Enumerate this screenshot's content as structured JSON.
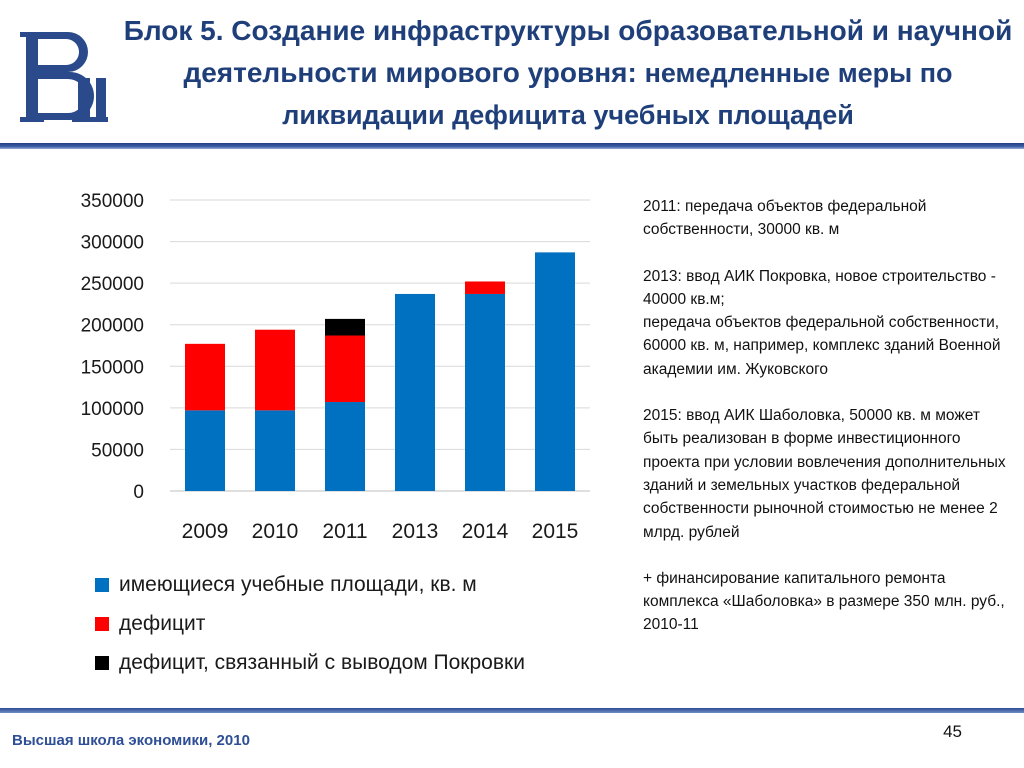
{
  "header": {
    "title_main": "Блок 5. Создание инфраструктуры образовательной и научной деятельности мирового уровня:",
    "title_sub": "немедленные меры по ликвидации дефицита учебных площадей"
  },
  "logo": {
    "icon": "hse-logo-icon",
    "color": "#2a4a8c"
  },
  "chart_data": {
    "type": "bar",
    "stacked": true,
    "categories": [
      "2009",
      "2010",
      "2011",
      "2013",
      "2014",
      "2015"
    ],
    "ylim": [
      0,
      350000
    ],
    "yticks": [
      0,
      50000,
      100000,
      150000,
      200000,
      250000,
      300000,
      350000
    ],
    "grid": true,
    "legend_position": "bottom",
    "series": [
      {
        "name": "имеющиеся учебные площади, кв. м",
        "color": "#0070c0",
        "values": [
          97000,
          97000,
          107000,
          237000,
          237000,
          287000
        ]
      },
      {
        "name": "дефицит",
        "color": "#ff0000",
        "values": [
          80000,
          97000,
          80000,
          0,
          15000,
          0
        ]
      },
      {
        "name": "дефицит, связанный с выводом Покровки",
        "color": "#000000",
        "values": [
          0,
          0,
          20000,
          0,
          0,
          0
        ]
      }
    ]
  },
  "notes": [
    "2011: передача объектов федеральной собственности, 30000 кв. м",
    "2013: ввод АИК Покровка, новое строительство - 40000 кв.м;\nпередача объектов федеральной собственности, 60000 кв. м, например, комплекс зданий Военной академии им. Жуковского",
    "2015: ввод АИК Шаболовка, 50000 кв. м может быть реализован в форме инвестиционного проекта при условии вовлечения дополнительных зданий и земельных участков федеральной собственности рыночной стоимостью не менее 2 млрд. рублей",
    "+ финансирование капитального ремонта комплекса «Шаболовка» в размере 350 млн. руб., 2010-11"
  ],
  "footer": {
    "org": "Высшая школа экономики, 2010",
    "page_number": "45"
  }
}
